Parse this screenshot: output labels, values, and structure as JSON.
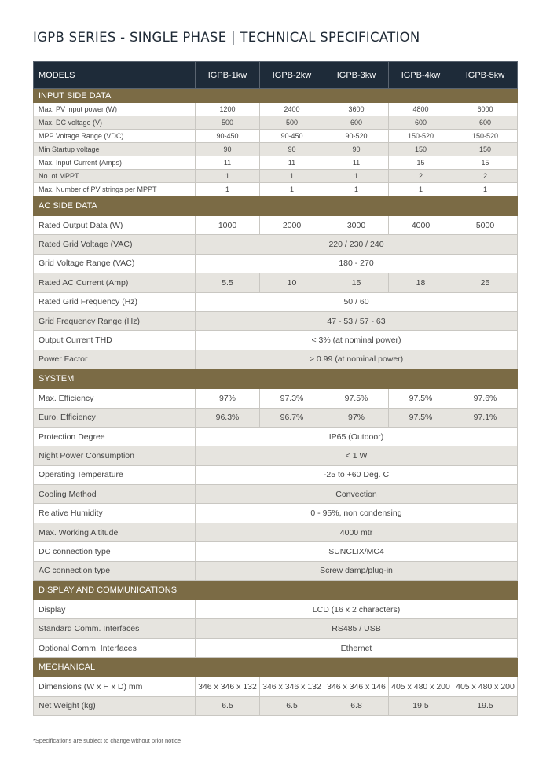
{
  "title": "IGPB SERIES - SINGLE PHASE | TECHNICAL SPECIFICATION",
  "colors": {
    "header_bg": "#1e2b39",
    "section_bg": "#7b6b45",
    "alt_row": "#e6e4df"
  },
  "header": {
    "label": "MODELS",
    "models": [
      "IGPB-1kw",
      "IGPB-2kw",
      "IGPB-3kw",
      "IGPB-4kw",
      "IGPB-5kw"
    ]
  },
  "sections": [
    {
      "name": "INPUT SIDE DATA",
      "compact": true,
      "rows": [
        {
          "label": "Max. PV input power (W)",
          "values": [
            "1200",
            "2400",
            "3600",
            "4800",
            "6000"
          ]
        },
        {
          "label": "Max. DC voltage (V)",
          "values": [
            "500",
            "500",
            "600",
            "600",
            "600"
          ]
        },
        {
          "label": "MPP Voltage Range (VDC)",
          "values": [
            "90-450",
            "90-450",
            "90-520",
            "150-520",
            "150-520"
          ]
        },
        {
          "label": "Min Startup voltage",
          "values": [
            "90",
            "90",
            "90",
            "150",
            "150"
          ]
        },
        {
          "label": "Max. Input Current (Amps)",
          "values": [
            "11",
            "11",
            "11",
            "15",
            "15"
          ]
        },
        {
          "label": "No. of MPPT",
          "values": [
            "1",
            "1",
            "1",
            "2",
            "2"
          ]
        },
        {
          "label": "Max. Number of PV strings per MPPT",
          "values": [
            "1",
            "1",
            "1",
            "1",
            "1"
          ]
        }
      ]
    },
    {
      "name": "AC SIDE DATA",
      "compact": false,
      "rows": [
        {
          "label": "Rated Output Data (W)",
          "values": [
            "1000",
            "2000",
            "3000",
            "4000",
            "5000"
          ]
        },
        {
          "label": "Rated Grid Voltage (VAC)",
          "value": "220 / 230 / 240"
        },
        {
          "label": "Grid Voltage Range (VAC)",
          "value": "180 - 270"
        },
        {
          "label": "Rated AC Current (Amp)",
          "values": [
            "5.5",
            "10",
            "15",
            "18",
            "25"
          ]
        },
        {
          "label": "Rated Grid Frequency (Hz)",
          "value": "50  / 60"
        },
        {
          "label": "Grid Frequency Range (Hz)",
          "value": "47 - 53 / 57 - 63"
        },
        {
          "label": "Output Current THD",
          "value": "< 3% (at nominal power)"
        },
        {
          "label": "Power Factor",
          "value": "> 0.99 (at nominal power)"
        }
      ]
    },
    {
      "name": "SYSTEM",
      "compact": false,
      "rows": [
        {
          "label": "Max. Efficiency",
          "values": [
            "97%",
            "97.3%",
            "97.5%",
            "97.5%",
            "97.6%"
          ]
        },
        {
          "label": "Euro. Efficiency",
          "values": [
            "96.3%",
            "96.7%",
            "97%",
            "97.5%",
            "97.1%"
          ]
        },
        {
          "label": "Protection Degree",
          "value": "IP65 (Outdoor)"
        },
        {
          "label": "Night Power Consumption",
          "value": "< 1 W"
        },
        {
          "label": "Operating Temperature",
          "value": "-25 to +60 Deg. C"
        },
        {
          "label": "Cooling Method",
          "value": "Convection"
        },
        {
          "label": "Relative Humidity",
          "value": "0 - 95%, non condensing"
        },
        {
          "label": "Max. Working Altitude",
          "value": "4000 mtr"
        },
        {
          "label": "DC connection type",
          "value": "SUNCLIX/MC4"
        },
        {
          "label": "AC connection type",
          "value": "Screw damp/plug-in"
        }
      ]
    },
    {
      "name": "DISPLAY AND COMMUNICATIONS",
      "compact": false,
      "rows": [
        {
          "label": "Display",
          "value": "LCD (16 x 2 characters)"
        },
        {
          "label": "Standard Comm. Interfaces",
          "value": "RS485 / USB"
        },
        {
          "label": "Optional Comm. Interfaces",
          "value": "Ethernet"
        }
      ]
    },
    {
      "name": "MECHANICAL",
      "compact": false,
      "rows": [
        {
          "label": "Dimensions (W x H x D) mm",
          "values": [
            "346 x 346 x 132",
            "346 x 346 x 132",
            "346 x 346 x 146",
            "405 x 480 x 200",
            "405 x 480 x 200"
          ]
        },
        {
          "label": "Net Weight (kg)",
          "values": [
            "6.5",
            "6.5",
            "6.8",
            "19.5",
            "19.5"
          ]
        }
      ]
    }
  ],
  "footnote": "*Specifications are subject to change without prior notice"
}
